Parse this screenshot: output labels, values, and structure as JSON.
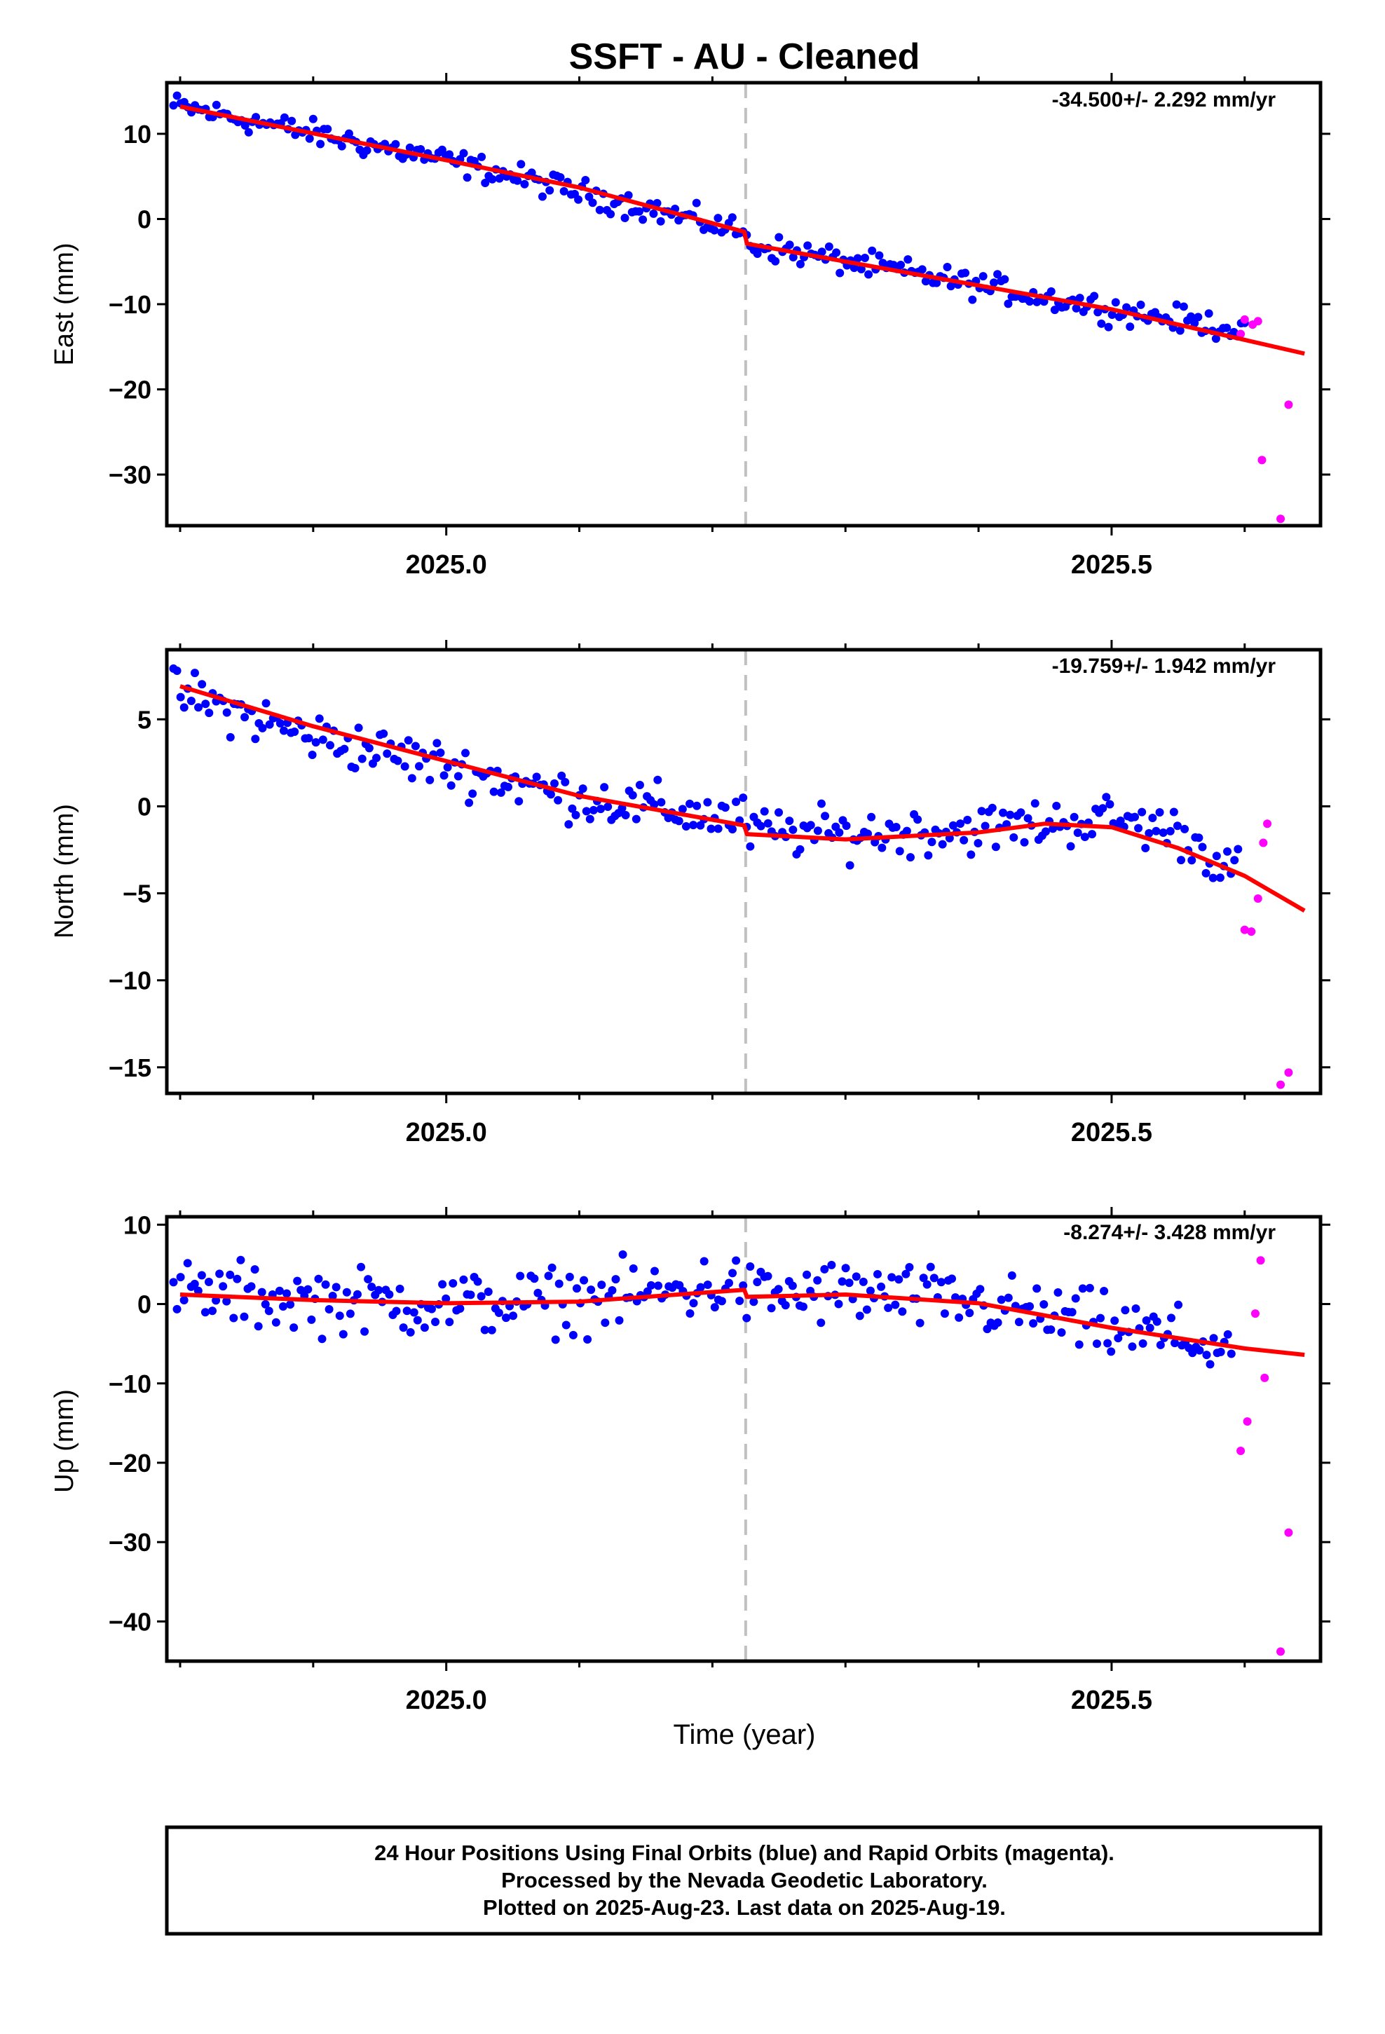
{
  "chart_data": {
    "title": "SSFT  - AU - Cleaned",
    "xlabel": "Time (year)",
    "xlim": [
      2024.79,
      2025.657
    ],
    "x_tick_labels": [
      "2025.0",
      "2025.5"
    ],
    "x_major": [
      2025.0,
      2025.5
    ],
    "x_minor": [
      2024.8,
      2024.9,
      2025.0,
      2025.1,
      2025.2,
      2025.3,
      2025.4,
      2025.5,
      2025.6
    ],
    "break_epoch": 2025.225,
    "colors": {
      "final": "#0000ff",
      "rapid": "#ff00ff",
      "model": "#ff0000",
      "break": "#c0c0c0"
    },
    "panels": [
      {
        "ylabel": "East (mm)",
        "rate_text": "-34.500+/- 2.292 mm/yr",
        "ylim": [
          -36,
          16
        ],
        "yticks": [
          10,
          0,
          -10,
          -20,
          -30
        ],
        "ytick_labels": [
          "10",
          "0",
          "−10",
          "−20",
          "−30"
        ],
        "model": [
          [
            2024.8,
            13.2
          ],
          [
            2025.0,
            6.9
          ],
          [
            2025.1,
            3.7
          ],
          [
            2025.224,
            -1.5
          ],
          [
            2025.226,
            -2.9
          ],
          [
            2025.3,
            -5.0
          ],
          [
            2025.5,
            -10.6
          ],
          [
            2025.645,
            -15.8
          ]
        ],
        "final_anchors": [
          [
            2024.8,
            13.2
          ],
          [
            2025.0,
            6.9
          ],
          [
            2025.224,
            -1.5
          ],
          [
            2025.226,
            -2.9
          ],
          [
            2025.5,
            -10.6
          ],
          [
            2025.6,
            -13.0
          ]
        ],
        "final_noise": 1.2,
        "rapid": [
          [
            2025.597,
            -13.5
          ],
          [
            2025.6,
            -11.8
          ],
          [
            2025.606,
            -12.4
          ],
          [
            2025.61,
            -12.0
          ],
          [
            2025.613,
            -28.3
          ],
          [
            2025.627,
            -35.2
          ],
          [
            2025.633,
            -21.8
          ]
        ]
      },
      {
        "ylabel": "North (mm)",
        "rate_text": "-19.759+/- 1.942 mm/yr",
        "ylim": [
          -16.5,
          9
        ],
        "yticks": [
          5,
          0,
          -5,
          -10,
          -15
        ],
        "ytick_labels": [
          "5",
          "0",
          "−5",
          "−10",
          "−15"
        ],
        "model": [
          [
            2024.8,
            6.9
          ],
          [
            2024.9,
            4.6
          ],
          [
            2025.0,
            2.6
          ],
          [
            2025.1,
            0.6
          ],
          [
            2025.224,
            -1.1
          ],
          [
            2025.226,
            -1.6
          ],
          [
            2025.3,
            -1.9
          ],
          [
            2025.4,
            -1.5
          ],
          [
            2025.45,
            -1.0
          ],
          [
            2025.5,
            -1.2
          ],
          [
            2025.55,
            -2.4
          ],
          [
            2025.6,
            -4.0
          ],
          [
            2025.645,
            -6.0
          ]
        ],
        "final_anchors": [
          [
            2024.8,
            6.5
          ],
          [
            2024.9,
            4.0
          ],
          [
            2025.0,
            2.3
          ],
          [
            2025.1,
            0.5
          ],
          [
            2025.224,
            -0.8
          ],
          [
            2025.226,
            -1.4
          ],
          [
            2025.3,
            -1.6
          ],
          [
            2025.4,
            -1.3
          ],
          [
            2025.5,
            -0.7
          ],
          [
            2025.55,
            -1.5
          ],
          [
            2025.595,
            -3.8
          ]
        ],
        "final_noise": 1.1,
        "rapid": [
          [
            2025.6,
            -7.1
          ],
          [
            2025.605,
            -7.2
          ],
          [
            2025.61,
            -5.3
          ],
          [
            2025.614,
            -2.1
          ],
          [
            2025.617,
            -1.0
          ],
          [
            2025.627,
            -16.0
          ],
          [
            2025.633,
            -15.3
          ]
        ]
      },
      {
        "ylabel": "Up (mm)",
        "rate_text": "-8.274+/- 3.428 mm/yr",
        "ylim": [
          -45,
          11
        ],
        "yticks": [
          10,
          0,
          -10,
          -20,
          -30,
          -40
        ],
        "ytick_labels": [
          "10",
          "0",
          "−10",
          "−20",
          "−30",
          "−40"
        ],
        "model": [
          [
            2024.8,
            1.2
          ],
          [
            2024.9,
            0.5
          ],
          [
            2025.0,
            0.1
          ],
          [
            2025.1,
            0.3
          ],
          [
            2025.224,
            1.8
          ],
          [
            2025.226,
            0.9
          ],
          [
            2025.3,
            1.2
          ],
          [
            2025.4,
            0.1
          ],
          [
            2025.5,
            -3.0
          ],
          [
            2025.6,
            -5.6
          ],
          [
            2025.645,
            -6.4
          ]
        ],
        "final_anchors": [
          [
            2024.8,
            1.5
          ],
          [
            2024.9,
            0.5
          ],
          [
            2025.0,
            0.0
          ],
          [
            2025.1,
            0.5
          ],
          [
            2025.224,
            2.5
          ],
          [
            2025.226,
            1.0
          ],
          [
            2025.3,
            1.5
          ],
          [
            2025.4,
            0.0
          ],
          [
            2025.5,
            -3.0
          ],
          [
            2025.59,
            -5.5
          ]
        ],
        "final_noise": 3.2,
        "rapid": [
          [
            2025.597,
            -18.5
          ],
          [
            2025.602,
            -14.8
          ],
          [
            2025.608,
            -1.2
          ],
          [
            2025.612,
            5.5
          ],
          [
            2025.615,
            -9.3
          ],
          [
            2025.627,
            -43.8
          ],
          [
            2025.633,
            -28.8
          ]
        ]
      }
    ]
  },
  "footer": {
    "line1": "24 Hour Positions Using Final Orbits (blue) and Rapid Orbits (magenta).",
    "line2": "Processed by the Nevada Geodetic Laboratory.",
    "line3": "Plotted on 2025-Aug-23. Last data on 2025-Aug-19."
  }
}
